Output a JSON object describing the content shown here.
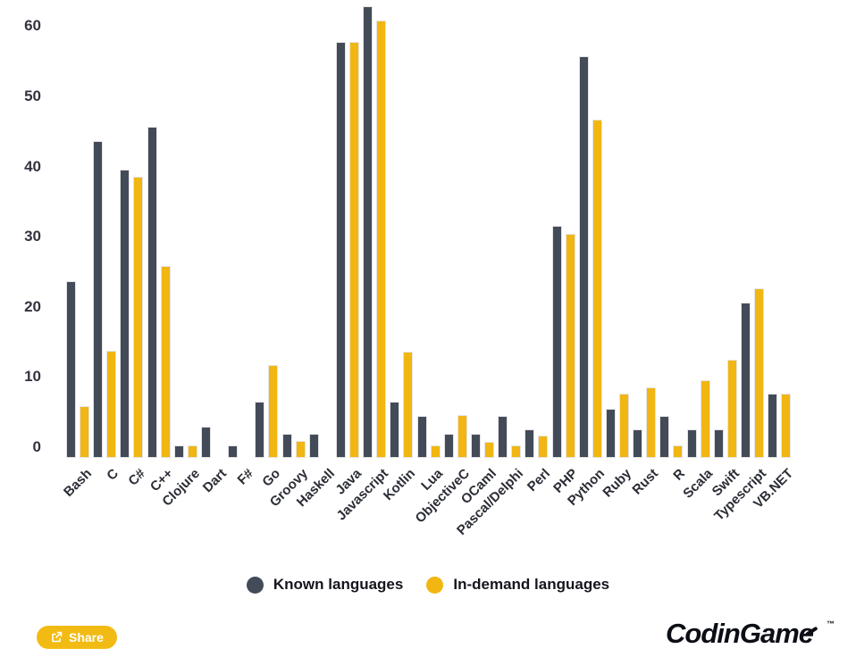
{
  "chart_data": {
    "type": "bar",
    "title": "",
    "xlabel": "",
    "ylabel": "",
    "y_ticks": [
      0,
      10,
      20,
      30,
      40,
      50,
      60
    ],
    "ylim": [
      0,
      63
    ],
    "grid": false,
    "legend_position": "bottom",
    "categories": [
      "Bash",
      "C",
      "C#",
      "C++",
      "Clojure",
      "Dart",
      "F#",
      "Go",
      "Groovy",
      "Haskell",
      "Java",
      "Javascript",
      "Kotlin",
      "Lua",
      "ObjectiveC",
      "OCaml",
      "Pascal/Delphi",
      "Perl",
      "PHP",
      "Python",
      "Ruby",
      "Rust",
      "R",
      "Scala",
      "Swift",
      "Typescript",
      "VB.NET"
    ],
    "series": [
      {
        "name": "Known languages",
        "color": "#434b59",
        "values": [
          23.7,
          43.7,
          39.6,
          45.7,
          0.3,
          2.9,
          0.3,
          6.5,
          1.9,
          1.9,
          57.7,
          62.8,
          6.5,
          4.5,
          1.9,
          1.9,
          4.5,
          2.6,
          31.5,
          55.7,
          5.5,
          2.6,
          4.5,
          2.6,
          2.6,
          20.6,
          7.6
        ]
      },
      {
        "name": "In-demand languages",
        "color": "#f1b611",
        "values": [
          5.8,
          13.8,
          38.6,
          25.8,
          0.3,
          null,
          null,
          11.7,
          0.9,
          null,
          57.7,
          60.8,
          13.6,
          0.3,
          4.6,
          0.8,
          0.3,
          1.6,
          30.4,
          46.7,
          7.6,
          8.5,
          0.3,
          9.5,
          12.5,
          22.6,
          7.6
        ]
      }
    ]
  },
  "legend": {
    "items": [
      {
        "label": "Known languages",
        "color": "#434b59"
      },
      {
        "label": "In-demand languages",
        "color": "#f1b611"
      }
    ]
  },
  "footer": {
    "share_label": "Share",
    "brand": "CodinGame",
    "trademark": "™"
  }
}
